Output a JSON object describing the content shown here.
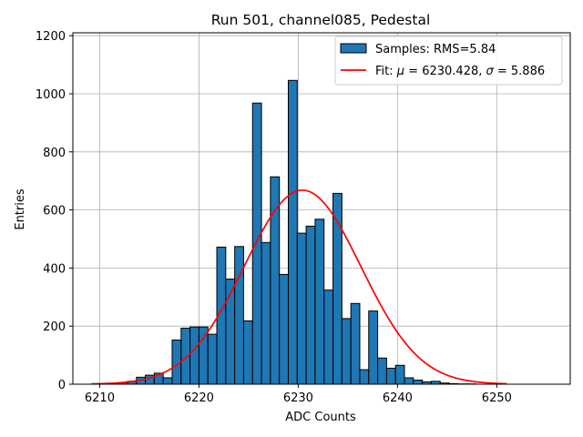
{
  "chart_data": {
    "type": "bar",
    "title": "Run 501, channel085, Pedestal",
    "xlabel": "ADC Counts",
    "ylabel": "Entries",
    "xlim": [
      6207.3,
      6257.4
    ],
    "ylim": [
      0,
      1210
    ],
    "grid": true,
    "legend_position": "top-right",
    "xticks": [
      6210,
      6220,
      6230,
      6240,
      6250
    ],
    "yticks": [
      0,
      200,
      400,
      600,
      800,
      1000,
      1200
    ],
    "histogram": {
      "name": "Samples: RMS=5.84",
      "color": "#1f77b4",
      "edgecolor": "#000000",
      "bin_edges": [
        6209.2,
        6210.1,
        6211.0,
        6211.9,
        6212.8,
        6213.7,
        6214.6,
        6215.5,
        6216.4,
        6217.3,
        6218.2,
        6219.1,
        6220.0,
        6220.9,
        6221.8,
        6222.7,
        6223.6,
        6224.5,
        6225.4,
        6226.3,
        6227.2,
        6228.1,
        6229.0,
        6229.9,
        6230.8,
        6231.7,
        6232.6,
        6233.5,
        6234.4,
        6235.3,
        6236.2,
        6237.1,
        6238.0,
        6238.9,
        6239.8,
        6240.7,
        6241.6,
        6242.5,
        6243.4,
        6244.3,
        6245.2,
        6246.1,
        6247.0,
        6247.9,
        6248.8,
        6249.7,
        6250.6,
        6251.5,
        6252.4,
        6253.3,
        6254.2,
        6255.1
      ],
      "counts": [
        1,
        1,
        2,
        6,
        10,
        24,
        31,
        38,
        22,
        152,
        193,
        197,
        197,
        172,
        472,
        362,
        474,
        218,
        968,
        488,
        714,
        378,
        1046,
        520,
        544,
        568,
        324,
        657,
        226,
        278,
        50,
        252,
        90,
        55,
        65,
        22,
        14,
        8,
        10,
        4,
        2,
        1,
        1,
        0,
        0,
        0,
        0,
        0,
        0,
        0,
        0
      ]
    },
    "fit": {
      "name": "Fit: $\\mu$ = 6230.428, $\\sigma$ = 5.886",
      "color": "#ff0000",
      "mu": 6230.428,
      "sigma": 5.886,
      "amplitude": 668,
      "x_range": [
        6209.2,
        6251.0
      ]
    }
  }
}
